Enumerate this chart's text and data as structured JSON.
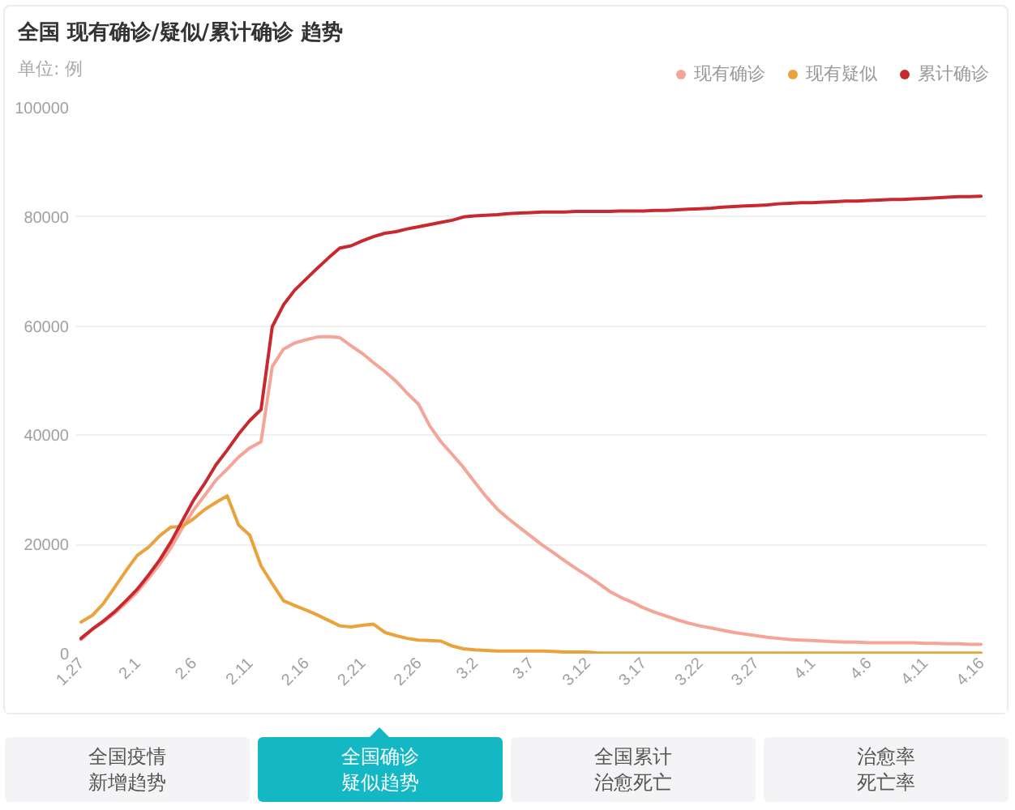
{
  "chart_data": {
    "type": "line",
    "title": "全国 现有确诊/疑似/累计确诊 趋势",
    "ylabel": "单位: 例",
    "categories": [
      "1.27",
      null,
      null,
      null,
      null,
      "2.1",
      null,
      null,
      null,
      null,
      "2.6",
      null,
      null,
      null,
      null,
      "2.11",
      null,
      null,
      null,
      null,
      "2.16",
      null,
      null,
      null,
      null,
      "2.21",
      null,
      null,
      null,
      null,
      "2.26",
      null,
      null,
      null,
      null,
      "3.2",
      null,
      null,
      null,
      null,
      "3.7",
      null,
      null,
      null,
      null,
      "3.12",
      null,
      null,
      null,
      null,
      "3.17",
      null,
      null,
      null,
      null,
      "3.22",
      null,
      null,
      null,
      null,
      "3.27",
      null,
      null,
      null,
      null,
      "4.1",
      null,
      null,
      null,
      null,
      "4.6",
      null,
      null,
      null,
      null,
      "4.11",
      null,
      null,
      null,
      null,
      "4.16"
    ],
    "series": [
      {
        "name": "现有确诊",
        "color": "#f4a597",
        "values": [
          2600,
          4400,
          5800,
          7400,
          9300,
          11300,
          13800,
          16400,
          19400,
          23000,
          26300,
          29000,
          31800,
          33800,
          36000,
          37700,
          38800,
          52600,
          55800,
          56900,
          57500,
          58000,
          58100,
          57900,
          56400,
          55000,
          53300,
          51700,
          49900,
          47700,
          45700,
          41700,
          38800,
          36500,
          34100,
          31400,
          28800,
          26500,
          24700,
          23100,
          21500,
          19900,
          18500,
          17000,
          15600,
          14300,
          12900,
          11400,
          10300,
          9400,
          8400,
          7600,
          6900,
          6200,
          5600,
          5100,
          4700,
          4300,
          3900,
          3600,
          3300,
          3000,
          2800,
          2600,
          2500,
          2400,
          2300,
          2200,
          2100,
          2100,
          2000,
          2000,
          2000,
          2000,
          2000,
          1900,
          1900,
          1800,
          1800,
          1700,
          1700
        ]
      },
      {
        "name": "现有疑似",
        "color": "#eaa23c",
        "values": [
          5800,
          7000,
          9200,
          12200,
          15200,
          18000,
          19500,
          21600,
          23200,
          23300,
          24700,
          26400,
          27700,
          28900,
          23600,
          21700,
          16100,
          12800,
          9700,
          8800,
          8000,
          7100,
          6100,
          5100,
          4900,
          5200,
          5400,
          3900,
          3300,
          2800,
          2500,
          2400,
          2300,
          1400,
          900,
          700,
          600,
          500,
          500,
          500,
          500,
          500,
          400,
          300,
          300,
          300,
          100,
          100,
          100,
          100,
          100,
          100,
          100,
          100,
          100,
          100,
          100,
          100,
          100,
          100,
          100,
          100,
          100,
          100,
          100,
          100,
          100,
          100,
          100,
          100,
          100,
          100,
          100,
          100,
          100,
          100,
          100,
          100,
          100,
          100,
          100
        ]
      },
      {
        "name": "累计确诊",
        "color": "#c8292e",
        "values": [
          2800,
          4500,
          6000,
          7700,
          9700,
          11800,
          14400,
          17200,
          20500,
          24300,
          28100,
          31200,
          34600,
          37300,
          40200,
          42700,
          44700,
          59900,
          63900,
          66600,
          68600,
          70600,
          72500,
          74300,
          74700,
          75600,
          76400,
          77000,
          77300,
          77800,
          78200,
          78600,
          79000,
          79400,
          80000,
          80200,
          80300,
          80400,
          80600,
          80700,
          80800,
          80900,
          80900,
          80900,
          81000,
          81000,
          81000,
          81000,
          81100,
          81100,
          81100,
          81200,
          81200,
          81300,
          81400,
          81500,
          81600,
          81800,
          81900,
          82000,
          82100,
          82200,
          82400,
          82500,
          82600,
          82600,
          82700,
          82800,
          82900,
          82900,
          83000,
          83100,
          83200,
          83200,
          83300,
          83400,
          83500,
          83600,
          83700,
          83700,
          83800
        ]
      }
    ],
    "ylim": [
      0,
      100000
    ],
    "yticks": [
      0,
      20000,
      40000,
      60000,
      80000,
      100000
    ],
    "grid": "y",
    "legend": "top right",
    "annotations": [
      "全国疫情新增趋势",
      "全国确诊疑似趋势",
      "全国累计治愈死亡",
      "治愈率死亡率"
    ]
  }
}
